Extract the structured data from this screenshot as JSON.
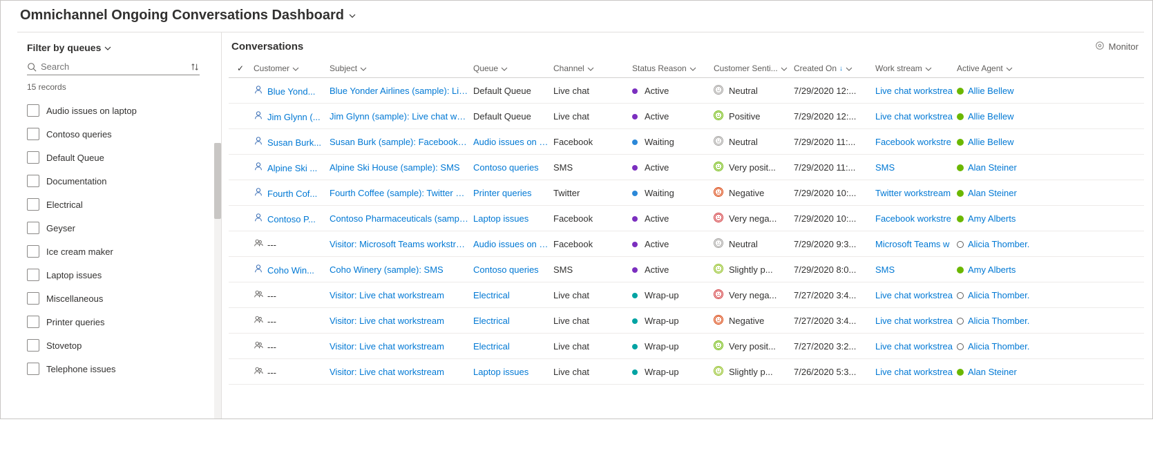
{
  "header": {
    "title": "Omnichannel Ongoing Conversations Dashboard"
  },
  "sidebar": {
    "title": "Filter by queues",
    "search_placeholder": "Search",
    "records_label": "15 records",
    "queues": [
      "Audio issues on laptop",
      "Contoso queries",
      "Default Queue",
      "Documentation",
      "Electrical",
      "Geyser",
      "Ice cream maker",
      "Laptop issues",
      "Miscellaneous",
      "Printer queries",
      "Stovetop",
      "Telephone issues"
    ]
  },
  "main": {
    "title": "Conversations",
    "monitor_label": "Monitor",
    "columns": {
      "customer": "Customer",
      "subject": "Subject",
      "queue": "Queue",
      "channel": "Channel",
      "status": "Status Reason",
      "sentiment": "Customer Senti...",
      "created": "Created On",
      "workstream": "Work stream",
      "agent": "Active Agent"
    },
    "colors": {
      "link": "#0078d4",
      "status_active": "#7b2fbf",
      "status_waiting": "#2b88d8",
      "status_wrapup": "#00a3a3",
      "sentiment_neutral": "#a19f9d",
      "sentiment_positive": "#6bb700",
      "sentiment_very_positive": "#6bb700",
      "sentiment_slightly_positive": "#8cbd18",
      "sentiment_negative": "#d83b01",
      "sentiment_very_negative": "#d13438",
      "agent_available": "#6bb700"
    },
    "rows": [
      {
        "icon": "person",
        "customer": "Blue Yond...",
        "subject": "Blue Yonder Airlines (sample): Live c",
        "queue": "Default Queue",
        "queue_link": false,
        "channel": "Live chat",
        "status": "Active",
        "status_key": "active",
        "sentiment": "Neutral",
        "sentiment_key": "neutral",
        "created": "7/29/2020 12:...",
        "workstream": "Live chat workstrea",
        "agent": "Allie Bellew",
        "agent_state": "available"
      },
      {
        "icon": "person",
        "customer": "Jim Glynn (...",
        "subject": "Jim Glynn (sample): Live chat works",
        "queue": "Default Queue",
        "queue_link": false,
        "channel": "Live chat",
        "status": "Active",
        "status_key": "active",
        "sentiment": "Positive",
        "sentiment_key": "positive",
        "created": "7/29/2020 12:...",
        "workstream": "Live chat workstrea",
        "agent": "Allie Bellew",
        "agent_state": "available"
      },
      {
        "icon": "person",
        "customer": "Susan Burk...",
        "subject": "Susan Burk (sample): Facebook wor",
        "queue": "Audio issues on lap",
        "queue_link": true,
        "channel": "Facebook",
        "status": "Waiting",
        "status_key": "waiting",
        "sentiment": "Neutral",
        "sentiment_key": "neutral",
        "created": "7/29/2020 11:...",
        "workstream": "Facebook workstre",
        "agent": "Allie Bellew",
        "agent_state": "available"
      },
      {
        "icon": "person",
        "customer": "Alpine Ski ...",
        "subject": "Alpine Ski House (sample): SMS",
        "queue": "Contoso queries",
        "queue_link": true,
        "channel": "SMS",
        "status": "Active",
        "status_key": "active",
        "sentiment": "Very posit...",
        "sentiment_key": "very_positive",
        "created": "7/29/2020 11:...",
        "workstream": "SMS",
        "agent": "Alan Steiner",
        "agent_state": "available"
      },
      {
        "icon": "person",
        "customer": "Fourth Cof...",
        "subject": "Fourth Coffee (sample): Twitter wor",
        "queue": "Printer queries",
        "queue_link": true,
        "channel": "Twitter",
        "status": "Waiting",
        "status_key": "waiting",
        "sentiment": "Negative",
        "sentiment_key": "negative",
        "created": "7/29/2020 10:...",
        "workstream": "Twitter workstream",
        "agent": "Alan Steiner",
        "agent_state": "available"
      },
      {
        "icon": "person",
        "customer": "Contoso P...",
        "subject": "Contoso Pharmaceuticals (sample):",
        "queue": "Laptop issues",
        "queue_link": true,
        "channel": "Facebook",
        "status": "Active",
        "status_key": "active",
        "sentiment": "Very nega...",
        "sentiment_key": "very_negative",
        "created": "7/29/2020 10:...",
        "workstream": "Facebook workstre",
        "agent": "Amy Alberts",
        "agent_state": "available"
      },
      {
        "icon": "group",
        "customer": "---",
        "subject": "Visitor: Microsoft Teams workstrean",
        "queue": "Audio issues on lap",
        "queue_link": true,
        "channel": "Facebook",
        "status": "Active",
        "status_key": "active",
        "sentiment": "Neutral",
        "sentiment_key": "neutral",
        "created": "7/29/2020 9:3...",
        "workstream": "Microsoft Teams w",
        "agent": "Alicia Thomber.",
        "agent_state": "away"
      },
      {
        "icon": "person",
        "customer": "Coho Win...",
        "subject": "Coho Winery (sample): SMS",
        "queue": "Contoso queries",
        "queue_link": true,
        "channel": "SMS",
        "status": "Active",
        "status_key": "active",
        "sentiment": "Slightly p...",
        "sentiment_key": "slightly_positive",
        "created": "7/29/2020 8:0...",
        "workstream": "SMS",
        "agent": "Amy Alberts",
        "agent_state": "available"
      },
      {
        "icon": "group",
        "customer": "---",
        "subject": "Visitor: Live chat workstream",
        "queue": "Electrical",
        "queue_link": true,
        "channel": "Live chat",
        "status": "Wrap-up",
        "status_key": "wrapup",
        "sentiment": "Very nega...",
        "sentiment_key": "very_negative",
        "created": "7/27/2020 3:4...",
        "workstream": "Live chat workstrea",
        "agent": "Alicia Thomber.",
        "agent_state": "away"
      },
      {
        "icon": "group",
        "customer": "---",
        "subject": "Visitor: Live chat workstream",
        "queue": "Electrical",
        "queue_link": true,
        "channel": "Live chat",
        "status": "Wrap-up",
        "status_key": "wrapup",
        "sentiment": "Negative",
        "sentiment_key": "negative",
        "created": "7/27/2020 3:4...",
        "workstream": "Live chat workstrea",
        "agent": "Alicia Thomber.",
        "agent_state": "away"
      },
      {
        "icon": "group",
        "customer": "---",
        "subject": "Visitor: Live chat workstream",
        "queue": "Electrical",
        "queue_link": true,
        "channel": "Live chat",
        "status": "Wrap-up",
        "status_key": "wrapup",
        "sentiment": "Very posit...",
        "sentiment_key": "very_positive",
        "created": "7/27/2020 3:2...",
        "workstream": "Live chat workstrea",
        "agent": "Alicia Thomber.",
        "agent_state": "away"
      },
      {
        "icon": "group",
        "customer": "---",
        "subject": "Visitor: Live chat workstream",
        "queue": "Laptop issues",
        "queue_link": true,
        "channel": "Live chat",
        "status": "Wrap-up",
        "status_key": "wrapup",
        "sentiment": "Slightly p...",
        "sentiment_key": "slightly_positive",
        "created": "7/26/2020 5:3...",
        "workstream": "Live chat workstrea",
        "agent": "Alan Steiner",
        "agent_state": "available"
      }
    ]
  }
}
